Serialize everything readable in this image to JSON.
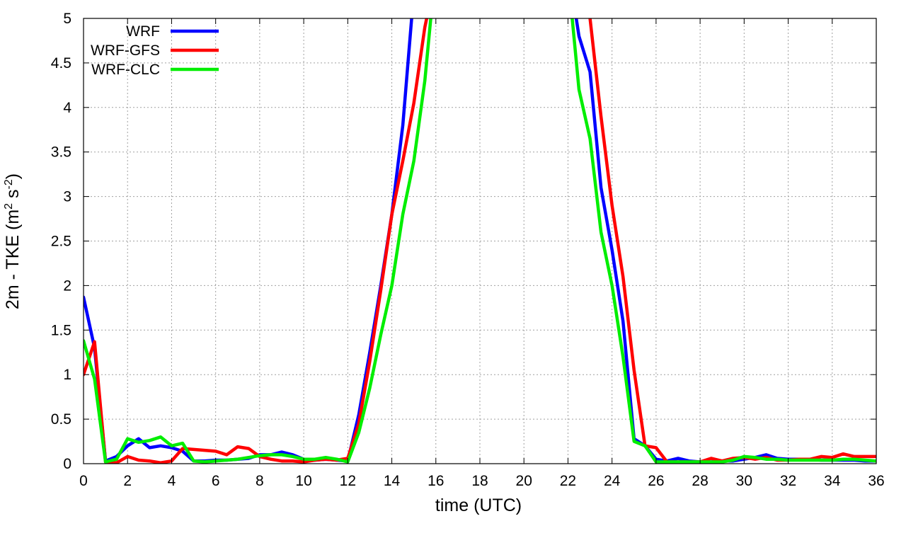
{
  "chart_data": {
    "type": "line",
    "xlabel": "time (UTC)",
    "ylabel": {
      "base": "2m - TKE (m",
      "sup1": "2",
      "mid": " s",
      "sup2": "-2",
      "end": ")"
    },
    "xlim": [
      0,
      36
    ],
    "ylim": [
      0,
      5
    ],
    "xticks": [
      0,
      2,
      4,
      6,
      8,
      10,
      12,
      14,
      16,
      18,
      20,
      22,
      24,
      26,
      28,
      30,
      32,
      34,
      36
    ],
    "yticks": [
      0,
      0.5,
      1,
      1.5,
      2,
      2.5,
      3,
      3.5,
      4,
      4.5,
      5
    ],
    "grid": true,
    "legend": "top-left",
    "series": [
      {
        "name": "WRF",
        "color": "#0000ff",
        "points": [
          [
            0,
            1.87
          ],
          [
            0.5,
            1.3
          ],
          [
            1,
            0.03
          ],
          [
            1.5,
            0.08
          ],
          [
            2,
            0.2
          ],
          [
            2.5,
            0.28
          ],
          [
            3,
            0.18
          ],
          [
            3.5,
            0.2
          ],
          [
            4,
            0.18
          ],
          [
            4.5,
            0.14
          ],
          [
            5,
            0.03
          ],
          [
            5.5,
            0.03
          ],
          [
            6,
            0.04
          ],
          [
            6.5,
            0.04
          ],
          [
            7,
            0.05
          ],
          [
            7.5,
            0.06
          ],
          [
            8,
            0.1
          ],
          [
            8.5,
            0.1
          ],
          [
            9,
            0.13
          ],
          [
            9.5,
            0.1
          ],
          [
            10,
            0.05
          ],
          [
            10.5,
            0.04
          ],
          [
            11,
            0.05
          ],
          [
            11.5,
            0.04
          ],
          [
            12,
            0.03
          ],
          [
            12.5,
            0.55
          ],
          [
            13,
            1.25
          ],
          [
            13.5,
            2.0
          ],
          [
            14,
            2.8
          ],
          [
            14.5,
            3.8
          ],
          [
            15,
            5.3
          ],
          [
            22,
            5.6
          ],
          [
            22.5,
            4.8
          ],
          [
            23,
            4.4
          ],
          [
            23.5,
            3.1
          ],
          [
            24,
            2.4
          ],
          [
            24.5,
            1.6
          ],
          [
            25,
            0.28
          ],
          [
            25.5,
            0.2
          ],
          [
            26,
            0.05
          ],
          [
            26.5,
            0.03
          ],
          [
            27,
            0.06
          ],
          [
            27.5,
            0.03
          ],
          [
            28,
            0.02
          ],
          [
            28.5,
            0.02
          ],
          [
            29,
            0.03
          ],
          [
            29.5,
            0.03
          ],
          [
            30,
            0.05
          ],
          [
            30.5,
            0.07
          ],
          [
            31,
            0.1
          ],
          [
            31.5,
            0.06
          ],
          [
            32,
            0.05
          ],
          [
            32.5,
            0.05
          ],
          [
            33,
            0.05
          ],
          [
            33.5,
            0.04
          ],
          [
            34,
            0.04
          ],
          [
            34.5,
            0.04
          ],
          [
            35,
            0.04
          ],
          [
            35.5,
            0.03
          ],
          [
            36,
            0.03
          ]
        ]
      },
      {
        "name": "WRF-GFS",
        "color": "#ff0000",
        "points": [
          [
            0,
            1.0
          ],
          [
            0.5,
            1.37
          ],
          [
            1,
            0.02
          ],
          [
            1.5,
            0.01
          ],
          [
            2,
            0.08
          ],
          [
            2.5,
            0.04
          ],
          [
            3,
            0.03
          ],
          [
            3.5,
            0.01
          ],
          [
            4,
            0.03
          ],
          [
            4.5,
            0.17
          ],
          [
            5,
            0.16
          ],
          [
            5.5,
            0.15
          ],
          [
            6,
            0.14
          ],
          [
            6.5,
            0.1
          ],
          [
            7,
            0.19
          ],
          [
            7.5,
            0.17
          ],
          [
            8,
            0.08
          ],
          [
            8.5,
            0.05
          ],
          [
            9,
            0.03
          ],
          [
            9.5,
            0.03
          ],
          [
            10,
            0.02
          ],
          [
            10.5,
            0.04
          ],
          [
            11,
            0.05
          ],
          [
            11.5,
            0.04
          ],
          [
            12,
            0.06
          ],
          [
            12.5,
            0.45
          ],
          [
            13,
            1.15
          ],
          [
            13.5,
            1.95
          ],
          [
            14,
            2.8
          ],
          [
            14.5,
            3.4
          ],
          [
            15,
            4.05
          ],
          [
            15.5,
            4.9
          ],
          [
            16,
            5.5
          ],
          [
            22.8,
            5.6
          ],
          [
            23,
            5.0
          ],
          [
            23.5,
            3.9
          ],
          [
            24,
            2.9
          ],
          [
            24.5,
            2.1
          ],
          [
            25,
            1.05
          ],
          [
            25.5,
            0.2
          ],
          [
            26,
            0.18
          ],
          [
            26.5,
            0.02
          ],
          [
            27,
            0.02
          ],
          [
            27.5,
            0.02
          ],
          [
            28,
            0.02
          ],
          [
            28.5,
            0.06
          ],
          [
            29,
            0.03
          ],
          [
            29.5,
            0.06
          ],
          [
            30,
            0.07
          ],
          [
            30.5,
            0.05
          ],
          [
            31,
            0.07
          ],
          [
            31.5,
            0.04
          ],
          [
            32,
            0.04
          ],
          [
            32.5,
            0.05
          ],
          [
            33,
            0.05
          ],
          [
            33.5,
            0.08
          ],
          [
            34,
            0.07
          ],
          [
            34.5,
            0.11
          ],
          [
            35,
            0.08
          ],
          [
            35.5,
            0.08
          ],
          [
            36,
            0.08
          ]
        ]
      },
      {
        "name": "WRF-CLC",
        "color": "#00ee00",
        "points": [
          [
            0,
            1.38
          ],
          [
            0.5,
            0.95
          ],
          [
            1,
            0.02
          ],
          [
            1.5,
            0.05
          ],
          [
            2,
            0.28
          ],
          [
            2.5,
            0.24
          ],
          [
            3,
            0.26
          ],
          [
            3.5,
            0.3
          ],
          [
            4,
            0.2
          ],
          [
            4.5,
            0.23
          ],
          [
            5,
            0.03
          ],
          [
            5.5,
            0.02
          ],
          [
            6,
            0.03
          ],
          [
            6.5,
            0.04
          ],
          [
            7,
            0.05
          ],
          [
            7.5,
            0.07
          ],
          [
            8,
            0.09
          ],
          [
            8.5,
            0.1
          ],
          [
            9,
            0.1
          ],
          [
            9.5,
            0.08
          ],
          [
            10,
            0.05
          ],
          [
            10.5,
            0.05
          ],
          [
            11,
            0.07
          ],
          [
            11.5,
            0.05
          ],
          [
            12,
            0.02
          ],
          [
            12.5,
            0.35
          ],
          [
            13,
            0.85
          ],
          [
            13.5,
            1.45
          ],
          [
            14,
            2.0
          ],
          [
            14.5,
            2.8
          ],
          [
            15,
            3.4
          ],
          [
            15.5,
            4.3
          ],
          [
            16,
            5.6
          ],
          [
            22,
            5.5
          ],
          [
            22.5,
            4.2
          ],
          [
            23,
            3.65
          ],
          [
            23.5,
            2.6
          ],
          [
            24,
            2.0
          ],
          [
            24.5,
            1.2
          ],
          [
            25,
            0.25
          ],
          [
            25.5,
            0.2
          ],
          [
            26,
            0.02
          ],
          [
            26.5,
            0.02
          ],
          [
            27,
            0.02
          ],
          [
            27.5,
            0.02
          ],
          [
            28,
            0.02
          ],
          [
            28.5,
            0.02
          ],
          [
            29,
            0.02
          ],
          [
            29.5,
            0.04
          ],
          [
            30,
            0.08
          ],
          [
            30.5,
            0.07
          ],
          [
            31,
            0.05
          ],
          [
            31.5,
            0.05
          ],
          [
            32,
            0.04
          ],
          [
            32.5,
            0.04
          ],
          [
            33,
            0.04
          ],
          [
            33.5,
            0.04
          ],
          [
            34,
            0.04
          ],
          [
            34.5,
            0.05
          ],
          [
            35,
            0.05
          ],
          [
            35.5,
            0.04
          ],
          [
            36,
            0.03
          ]
        ]
      }
    ]
  }
}
